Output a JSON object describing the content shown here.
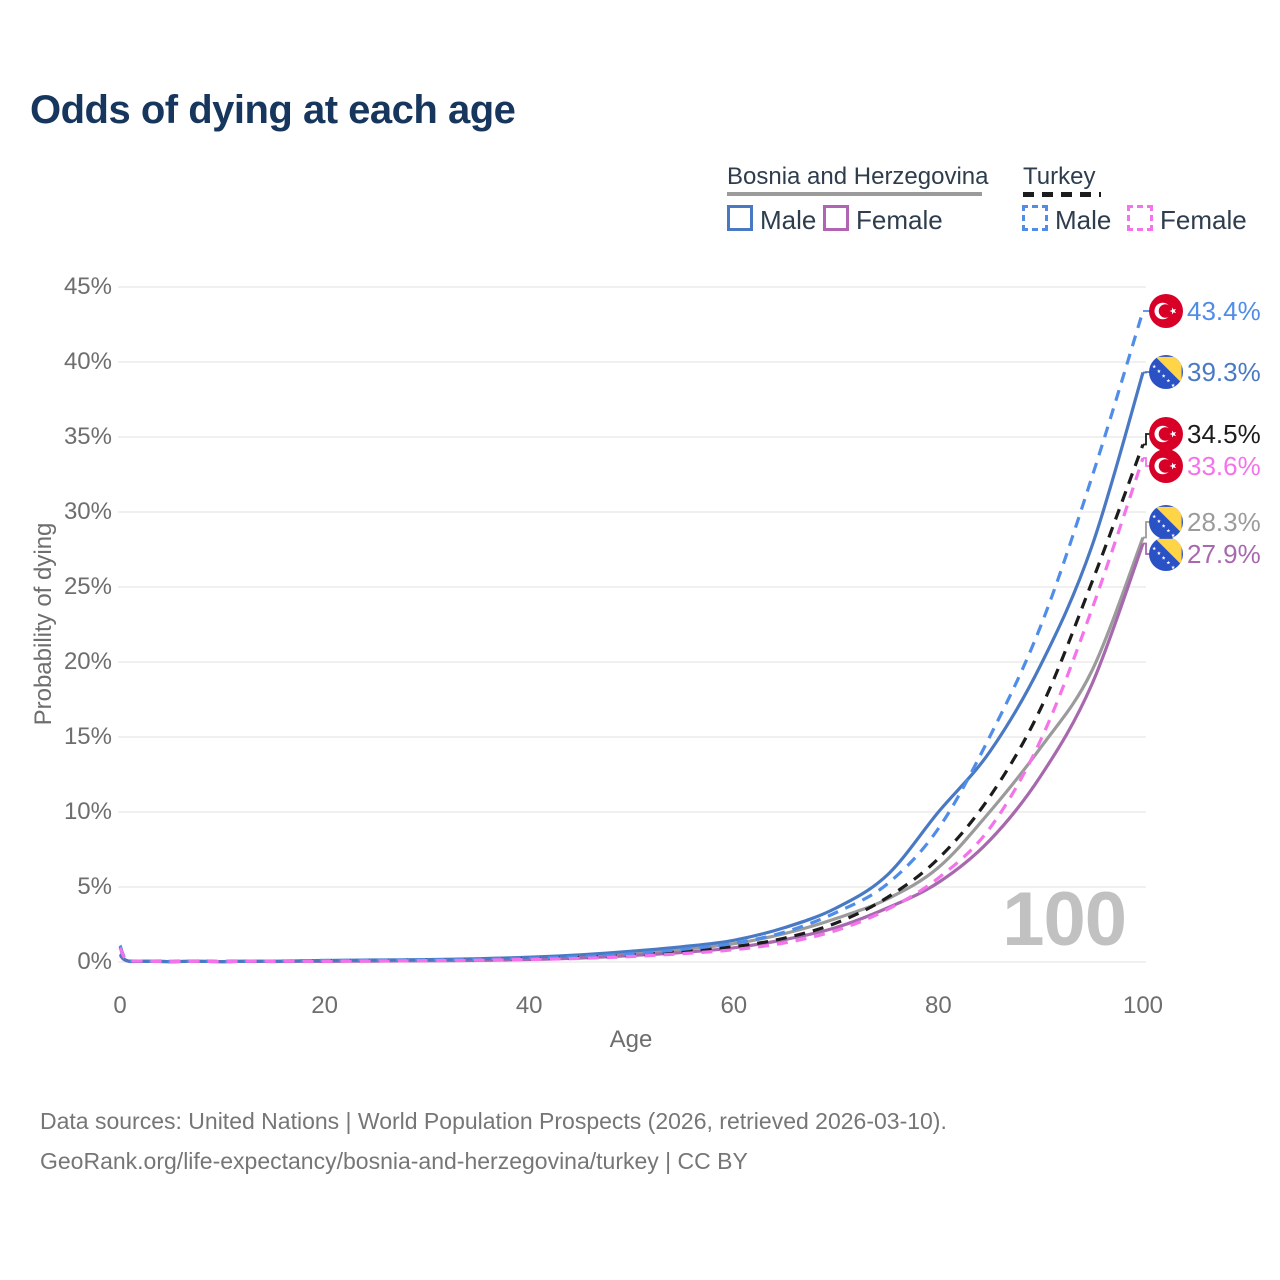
{
  "title": "Odds of dying at each age",
  "watermark_age": "100",
  "legend": {
    "groups": [
      {
        "label": "Bosnia and Herzegovina",
        "line_style": "solid",
        "underline_color": "#9b9b9b",
        "items": [
          {
            "label": "Male",
            "color": "#4a79c4"
          },
          {
            "label": "Female",
            "color": "#b164b1"
          }
        ]
      },
      {
        "label": "Turkey",
        "line_style": "dashed",
        "underline_color": "#1c1c1c",
        "items": [
          {
            "label": "Male",
            "color": "#4f8de8"
          },
          {
            "label": "Female",
            "color": "#f473ea"
          }
        ]
      }
    ]
  },
  "axes": {
    "x": {
      "label": "Age",
      "ticks": [
        "0",
        "20",
        "40",
        "60",
        "80",
        "100"
      ],
      "tick_values": [
        0,
        20,
        40,
        60,
        80,
        100
      ],
      "range": [
        0,
        100
      ]
    },
    "y": {
      "label": "Probability of dying",
      "ticks": [
        "0%",
        "5%",
        "10%",
        "15%",
        "20%",
        "25%",
        "30%",
        "35%",
        "40%",
        "45%"
      ],
      "tick_values": [
        0,
        5,
        10,
        15,
        20,
        25,
        30,
        35,
        40,
        45
      ],
      "range": [
        0,
        45
      ]
    }
  },
  "chart_data": {
    "type": "line",
    "title": "Odds of dying at each age",
    "xlabel": "Age",
    "ylabel": "Probability of dying",
    "xlim": [
      0,
      100
    ],
    "ylim": [
      0,
      45
    ],
    "grid": "horizontal-only",
    "units": "percent",
    "x": [
      0,
      1,
      5,
      10,
      15,
      20,
      25,
      30,
      35,
      40,
      45,
      50,
      55,
      60,
      65,
      70,
      75,
      80,
      85,
      90,
      95,
      100
    ],
    "series": [
      {
        "name": "Turkey — Male",
        "country": "Turkey",
        "sex": "Male",
        "line": "dashed",
        "color": "#4f8de8",
        "flag": "turkey",
        "end_value": 43.4,
        "end_label": "43.4%",
        "values": [
          1.1,
          0.07,
          0.03,
          0.03,
          0.06,
          0.1,
          0.12,
          0.14,
          0.18,
          0.25,
          0.36,
          0.55,
          0.85,
          1.25,
          2.0,
          3.3,
          5.2,
          8.9,
          15.0,
          22.4,
          32.3,
          43.4
        ]
      },
      {
        "name": "Bosnia and Herzegovina — Male",
        "country": "Bosnia and Herzegovina",
        "sex": "Male",
        "line": "solid",
        "color": "#4a79c4",
        "flag": "bosnia",
        "end_value": 39.3,
        "end_label": "39.3%",
        "values": [
          0.55,
          0.04,
          0.02,
          0.02,
          0.05,
          0.1,
          0.13,
          0.16,
          0.22,
          0.32,
          0.48,
          0.72,
          1.02,
          1.45,
          2.3,
          3.6,
          5.8,
          10.0,
          14.0,
          19.8,
          27.7,
          39.3
        ]
      },
      {
        "name": "Turkey — Both sexes",
        "country": "Turkey",
        "sex": "Both",
        "line": "dashed",
        "color": "#1c1c1c",
        "flag": "turkey",
        "end_value": 34.5,
        "end_label": "34.5%",
        "values": [
          1.0,
          0.06,
          0.03,
          0.03,
          0.05,
          0.08,
          0.1,
          0.12,
          0.15,
          0.21,
          0.3,
          0.46,
          0.7,
          1.02,
          1.6,
          2.6,
          4.3,
          6.9,
          11.0,
          16.9,
          25.3,
          34.5
        ]
      },
      {
        "name": "Turkey — Female",
        "country": "Turkey",
        "sex": "Female",
        "line": "dashed",
        "color": "#f473ea",
        "flag": "turkey",
        "end_value": 33.6,
        "end_label": "33.6%",
        "values": [
          0.95,
          0.06,
          0.02,
          0.02,
          0.04,
          0.05,
          0.07,
          0.09,
          0.12,
          0.17,
          0.24,
          0.37,
          0.56,
          0.82,
          1.28,
          2.1,
          3.5,
          5.6,
          8.9,
          14.8,
          23.5,
          33.6
        ]
      },
      {
        "name": "Bosnia and Herzegovina — Both sexes",
        "country": "Bosnia and Herzegovina",
        "sex": "Both",
        "line": "solid",
        "color": "#9b9b9b",
        "flag": "bosnia",
        "end_value": 28.3,
        "end_label": "28.3%",
        "values": [
          0.5,
          0.04,
          0.02,
          0.02,
          0.04,
          0.08,
          0.1,
          0.13,
          0.18,
          0.26,
          0.4,
          0.6,
          0.85,
          1.22,
          1.9,
          2.9,
          4.2,
          6.3,
          10.0,
          14.3,
          19.4,
          28.3
        ]
      },
      {
        "name": "Bosnia and Herzegovina — Female",
        "country": "Bosnia and Herzegovina",
        "sex": "Female",
        "line": "solid",
        "color": "#a868ae",
        "flag": "bosnia",
        "end_value": 27.9,
        "end_label": "27.9%",
        "values": [
          0.45,
          0.03,
          0.02,
          0.02,
          0.03,
          0.04,
          0.06,
          0.08,
          0.11,
          0.17,
          0.27,
          0.43,
          0.64,
          0.95,
          1.5,
          2.3,
          3.6,
          5.3,
          8.1,
          12.4,
          18.5,
          27.9
        ]
      }
    ]
  },
  "flags": {
    "turkey_red": "#d80027",
    "bosnia_blue": "#2b52c4",
    "bosnia_yellow": "#ffd447",
    "star_white": "#ffffff"
  },
  "footer": {
    "line1": "Data sources: United Nations | World Population Prospects (2026, retrieved 2026-03-10).",
    "line2": "GeoRank.org/life-expectancy/bosnia-and-herzegovina/turkey | CC BY"
  }
}
